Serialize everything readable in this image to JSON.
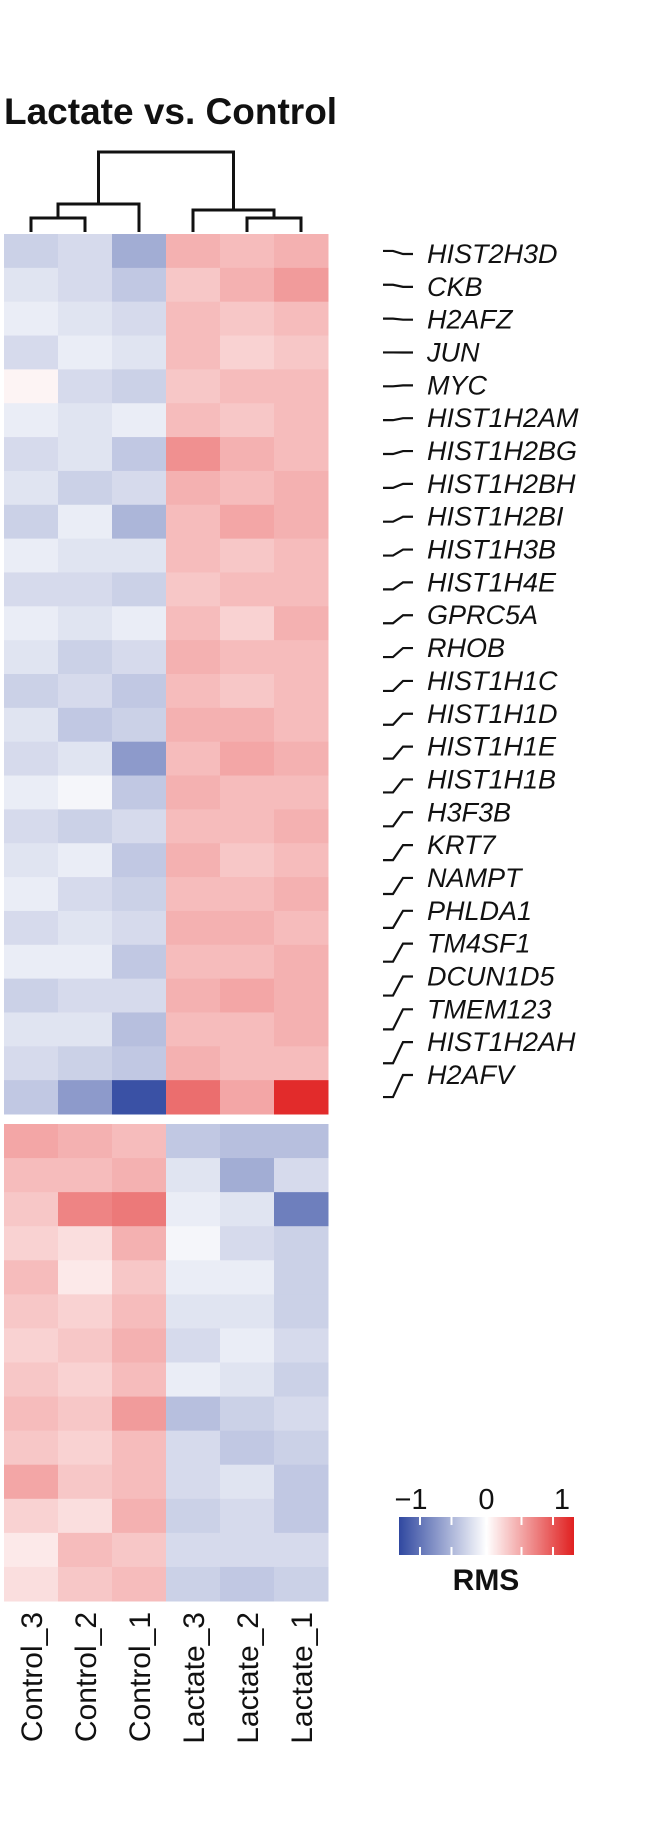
{
  "chart_data": {
    "type": "heatmap",
    "title": "Lactate vs. Control",
    "columns": [
      "Control_3",
      "Control_2",
      "Control_1",
      "Lactate_3",
      "Lactate_2",
      "Lactate_1"
    ],
    "colorbar": {
      "label": "RMS",
      "ticks": [
        "−1",
        "0",
        "1"
      ],
      "range": [
        -1,
        1
      ],
      "colors": [
        "#3048a0",
        "#ffffff",
        "#e02020"
      ]
    },
    "row_groups": [
      {
        "genes": [
          "HIST2H3D",
          "CKB",
          "H2AFZ",
          "JUN",
          "MYC",
          "HIST1H2AM",
          "HIST1H2BG",
          "HIST1H2BH",
          "HIST1H2BI",
          "HIST1H3B",
          "HIST1H4E",
          "GPRC5A",
          "RHOB",
          "HIST1H1C",
          "HIST1H1D",
          "HIST1H1E",
          "HIST1H1B",
          "H3F3B",
          "KRT7",
          "NAMPT",
          "PHLDA1",
          "TM4SF1",
          "DCUN1D5",
          "TMEM123",
          "HIST1H2AH",
          "H2AFV"
        ],
        "values": [
          [
            -0.25,
            -0.2,
            -0.45,
            0.35,
            0.3,
            0.35
          ],
          [
            -0.15,
            -0.2,
            -0.3,
            0.25,
            0.35,
            0.45
          ],
          [
            -0.1,
            -0.15,
            -0.2,
            0.3,
            0.25,
            0.3
          ],
          [
            -0.2,
            -0.1,
            -0.15,
            0.3,
            0.2,
            0.25
          ],
          [
            0.05,
            -0.2,
            -0.25,
            0.25,
            0.3,
            0.3
          ],
          [
            -0.1,
            -0.15,
            -0.1,
            0.3,
            0.25,
            0.3
          ],
          [
            -0.2,
            -0.15,
            -0.3,
            0.5,
            0.35,
            0.3
          ],
          [
            -0.15,
            -0.25,
            -0.2,
            0.35,
            0.3,
            0.35
          ],
          [
            -0.25,
            -0.1,
            -0.4,
            0.3,
            0.4,
            0.35
          ],
          [
            -0.1,
            -0.15,
            -0.15,
            0.3,
            0.25,
            0.3
          ],
          [
            -0.2,
            -0.2,
            -0.25,
            0.25,
            0.3,
            0.3
          ],
          [
            -0.1,
            -0.15,
            -0.1,
            0.3,
            0.2,
            0.35
          ],
          [
            -0.15,
            -0.25,
            -0.2,
            0.35,
            0.3,
            0.3
          ],
          [
            -0.25,
            -0.2,
            -0.3,
            0.3,
            0.25,
            0.3
          ],
          [
            -0.15,
            -0.3,
            -0.25,
            0.35,
            0.35,
            0.3
          ],
          [
            -0.2,
            -0.15,
            -0.55,
            0.3,
            0.4,
            0.35
          ],
          [
            -0.1,
            -0.05,
            -0.3,
            0.35,
            0.3,
            0.3
          ],
          [
            -0.2,
            -0.25,
            -0.2,
            0.3,
            0.3,
            0.35
          ],
          [
            -0.15,
            -0.1,
            -0.3,
            0.35,
            0.25,
            0.3
          ],
          [
            -0.1,
            -0.2,
            -0.25,
            0.3,
            0.3,
            0.35
          ],
          [
            -0.2,
            -0.15,
            -0.2,
            0.35,
            0.35,
            0.3
          ],
          [
            -0.1,
            -0.1,
            -0.3,
            0.3,
            0.3,
            0.35
          ],
          [
            -0.25,
            -0.2,
            -0.2,
            0.35,
            0.4,
            0.35
          ],
          [
            -0.15,
            -0.15,
            -0.35,
            0.3,
            0.3,
            0.35
          ],
          [
            -0.2,
            -0.25,
            -0.3,
            0.35,
            0.3,
            0.3
          ],
          [
            -0.3,
            -0.55,
            -0.95,
            0.65,
            0.4,
            0.95
          ]
        ]
      },
      {
        "genes": [],
        "values": [
          [
            0.4,
            0.35,
            0.3,
            -0.3,
            -0.35,
            -0.35
          ],
          [
            0.3,
            0.3,
            0.35,
            -0.15,
            -0.45,
            -0.2
          ],
          [
            0.25,
            0.55,
            0.6,
            -0.1,
            -0.15,
            -0.7
          ],
          [
            0.2,
            0.15,
            0.35,
            -0.05,
            -0.2,
            -0.25
          ],
          [
            0.3,
            0.1,
            0.25,
            -0.1,
            -0.1,
            -0.25
          ],
          [
            0.25,
            0.2,
            0.3,
            -0.15,
            -0.15,
            -0.25
          ],
          [
            0.2,
            0.25,
            0.35,
            -0.2,
            -0.1,
            -0.2
          ],
          [
            0.25,
            0.2,
            0.3,
            -0.1,
            -0.15,
            -0.25
          ],
          [
            0.3,
            0.25,
            0.45,
            -0.35,
            -0.25,
            -0.2
          ],
          [
            0.25,
            0.2,
            0.3,
            -0.2,
            -0.3,
            -0.25
          ],
          [
            0.4,
            0.25,
            0.3,
            -0.2,
            -0.15,
            -0.3
          ],
          [
            0.2,
            0.15,
            0.35,
            -0.25,
            -0.2,
            -0.3
          ],
          [
            0.1,
            0.3,
            0.25,
            -0.2,
            -0.2,
            -0.2
          ],
          [
            0.15,
            0.25,
            0.3,
            -0.25,
            -0.3,
            -0.25
          ]
        ]
      }
    ],
    "dendrogram": [
      {
        "left": "Control_3",
        "right": "Control_2",
        "height": 1
      },
      {
        "left": "Control_3+Control_2",
        "right": "Control_1",
        "height": 2
      },
      {
        "left": "Lactate_2",
        "right": "Lactate_1",
        "height": 1
      },
      {
        "left": "Lactate_3",
        "right": "Lactate_2+Lactate_1",
        "height": 2
      },
      {
        "left": "Control",
        "right": "Lactate",
        "height": 5
      }
    ]
  }
}
